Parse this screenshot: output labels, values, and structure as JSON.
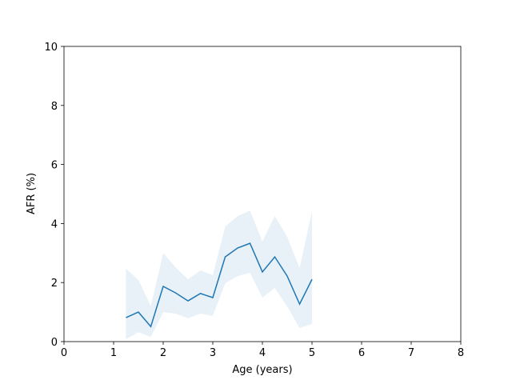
{
  "chart_data": {
    "type": "line",
    "xlabel": "Age (years)",
    "ylabel": "AFR (%)",
    "x": [
      1.25,
      1.5,
      1.75,
      2.0,
      2.25,
      2.5,
      2.75,
      3.0,
      3.25,
      3.5,
      3.75,
      4.0,
      4.25,
      4.5,
      4.75,
      5.0
    ],
    "series": [
      {
        "color": "#1f77b4",
        "values": [
          0.81,
          1.0,
          0.51,
          1.87,
          1.65,
          1.38,
          1.63,
          1.49,
          2.87,
          3.17,
          3.33,
          2.36,
          2.87,
          2.22,
          1.27,
          2.11
        ],
        "lower": [
          0.08,
          0.32,
          0.16,
          1.0,
          0.95,
          0.79,
          0.95,
          0.87,
          1.98,
          2.22,
          2.33,
          1.49,
          1.82,
          1.19,
          0.46,
          0.6
        ],
        "upper": [
          2.47,
          2.09,
          1.2,
          3.0,
          2.52,
          2.11,
          2.41,
          2.25,
          3.9,
          4.25,
          4.44,
          3.39,
          4.25,
          3.55,
          2.49,
          4.42
        ]
      }
    ],
    "xlim": [
      0,
      8
    ],
    "xticks": [
      0,
      1,
      2,
      3,
      4,
      5,
      6,
      7,
      8
    ],
    "ylim": [
      0,
      10
    ],
    "yticks": [
      0,
      2,
      4,
      6,
      8,
      10
    ],
    "grid": false
  }
}
